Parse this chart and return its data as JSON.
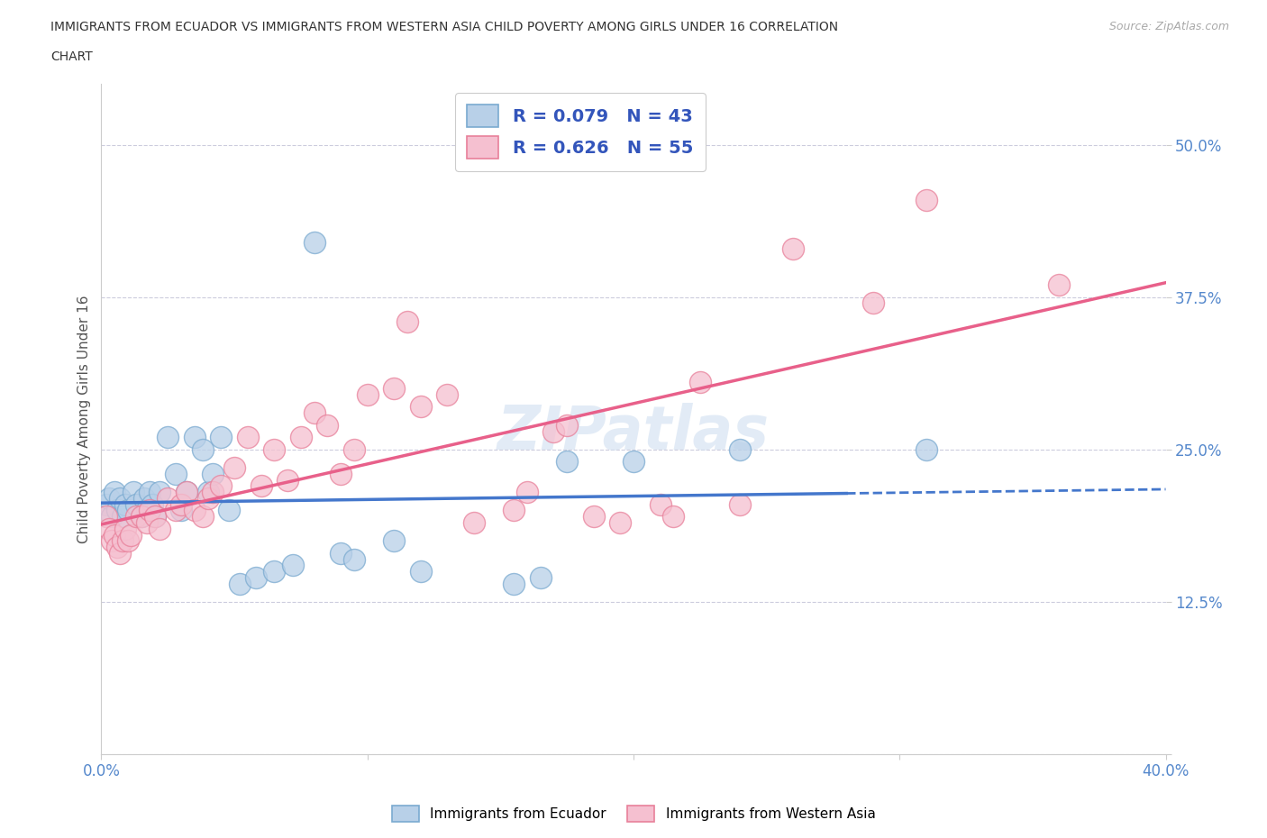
{
  "title_line1": "IMMIGRANTS FROM ECUADOR VS IMMIGRANTS FROM WESTERN ASIA CHILD POVERTY AMONG GIRLS UNDER 16 CORRELATION",
  "title_line2": "CHART",
  "source": "Source: ZipAtlas.com",
  "ylabel": "Child Poverty Among Girls Under 16",
  "xlim": [
    0.0,
    0.4
  ],
  "ylim": [
    0.0,
    0.55
  ],
  "yticks": [
    0.0,
    0.125,
    0.25,
    0.375,
    0.5
  ],
  "ytick_labels": [
    "",
    "12.5%",
    "25.0%",
    "37.5%",
    "50.0%"
  ],
  "xticks": [
    0.0,
    0.1,
    0.2,
    0.3,
    0.4
  ],
  "xtick_labels": [
    "0.0%",
    "",
    "",
    "",
    "40.0%"
  ],
  "ecuador_color": "#b8d0e8",
  "ecuador_edge_color": "#7aaad0",
  "western_asia_color": "#f5c0d0",
  "western_asia_edge_color": "#e8809a",
  "ecuador_R": 0.079,
  "ecuador_N": 43,
  "western_asia_R": 0.626,
  "western_asia_N": 55,
  "legend_text_color": "#3355bb",
  "regression_ecuador_color": "#4477cc",
  "regression_western_asia_color": "#e8608a",
  "watermark": "ZIPatlas",
  "ecuador_x": [
    0.002,
    0.003,
    0.004,
    0.005,
    0.006,
    0.007,
    0.008,
    0.009,
    0.01,
    0.012,
    0.013,
    0.015,
    0.016,
    0.017,
    0.018,
    0.019,
    0.02,
    0.022,
    0.025,
    0.028,
    0.03,
    0.032,
    0.035,
    0.038,
    0.04,
    0.042,
    0.045,
    0.048,
    0.052,
    0.058,
    0.065,
    0.072,
    0.08,
    0.09,
    0.095,
    0.11,
    0.12,
    0.155,
    0.165,
    0.175,
    0.2,
    0.24,
    0.31
  ],
  "ecuador_y": [
    0.205,
    0.21,
    0.195,
    0.215,
    0.2,
    0.21,
    0.195,
    0.205,
    0.2,
    0.215,
    0.205,
    0.195,
    0.21,
    0.2,
    0.215,
    0.205,
    0.195,
    0.215,
    0.26,
    0.23,
    0.2,
    0.215,
    0.26,
    0.25,
    0.215,
    0.23,
    0.26,
    0.2,
    0.14,
    0.145,
    0.15,
    0.155,
    0.42,
    0.165,
    0.16,
    0.175,
    0.15,
    0.14,
    0.145,
    0.24,
    0.24,
    0.25,
    0.25
  ],
  "western_asia_x": [
    0.002,
    0.003,
    0.004,
    0.005,
    0.006,
    0.007,
    0.008,
    0.009,
    0.01,
    0.011,
    0.013,
    0.015,
    0.017,
    0.018,
    0.02,
    0.022,
    0.025,
    0.028,
    0.03,
    0.032,
    0.035,
    0.038,
    0.04,
    0.042,
    0.045,
    0.05,
    0.055,
    0.06,
    0.065,
    0.07,
    0.075,
    0.08,
    0.085,
    0.09,
    0.095,
    0.1,
    0.11,
    0.115,
    0.12,
    0.13,
    0.14,
    0.155,
    0.16,
    0.17,
    0.175,
    0.185,
    0.195,
    0.21,
    0.215,
    0.225,
    0.24,
    0.26,
    0.29,
    0.31,
    0.36
  ],
  "western_asia_y": [
    0.195,
    0.185,
    0.175,
    0.18,
    0.17,
    0.165,
    0.175,
    0.185,
    0.175,
    0.18,
    0.195,
    0.195,
    0.19,
    0.2,
    0.195,
    0.185,
    0.21,
    0.2,
    0.205,
    0.215,
    0.2,
    0.195,
    0.21,
    0.215,
    0.22,
    0.235,
    0.26,
    0.22,
    0.25,
    0.225,
    0.26,
    0.28,
    0.27,
    0.23,
    0.25,
    0.295,
    0.3,
    0.355,
    0.285,
    0.295,
    0.19,
    0.2,
    0.215,
    0.265,
    0.27,
    0.195,
    0.19,
    0.205,
    0.195,
    0.305,
    0.205,
    0.415,
    0.37,
    0.455,
    0.385
  ]
}
